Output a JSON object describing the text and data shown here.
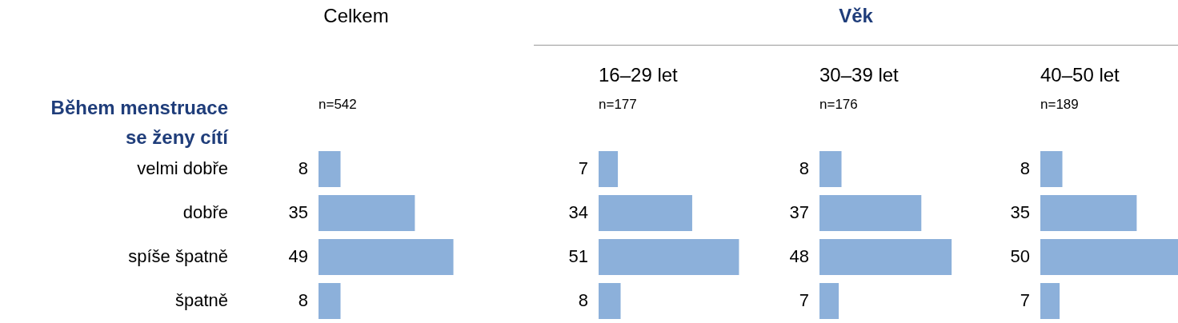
{
  "chart_data": [
    {
      "type": "bar",
      "orientation": "horizontal",
      "title": "Celkem",
      "subtitle": "n=542",
      "ylabel": "Během menstruace se ženy cítí",
      "categories": [
        "velmi dobře",
        "dobře",
        "spíše špatně",
        "špatně"
      ],
      "values": [
        8,
        35,
        49,
        8
      ],
      "color": "#8cb0da",
      "data_labels": true,
      "tick_labels": "y",
      "legend": false
    },
    {
      "type": "bar",
      "orientation": "horizontal",
      "title": "16–29 let",
      "subtitle": "n=177",
      "annotations": [
        "Věk"
      ],
      "categories": [
        null,
        null,
        null,
        null
      ],
      "values": [
        7,
        34,
        51,
        8
      ],
      "color": "#8cb0da",
      "data_labels": true,
      "legend": false
    },
    {
      "type": "bar",
      "orientation": "horizontal",
      "title": "30–39 let",
      "subtitle": "n=176",
      "categories": [
        null,
        null,
        null,
        null
      ],
      "values": [
        8,
        37,
        48,
        7
      ],
      "color": "#8cb0da",
      "data_labels": true,
      "legend": false
    },
    {
      "type": "bar",
      "orientation": "horizontal",
      "title": "40–50 let",
      "subtitle": "n=189",
      "categories": [
        null,
        null,
        null,
        null
      ],
      "values": [
        8,
        35,
        50,
        7
      ],
      "color": "#8cb0da",
      "data_labels": true,
      "legend": false
    }
  ]
}
